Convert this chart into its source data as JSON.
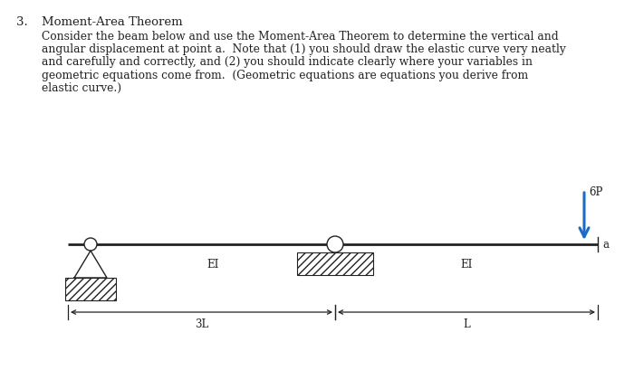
{
  "background_color": "#ffffff",
  "title_number": "3.",
  "title_text": "Moment-Area Theorem",
  "paragraph_lines": [
    "Consider the beam below and use the Moment-Area Theorem to determine the vertical and",
    "angular displacement at point a.  Note that (1) you should draw the elastic curve very neatly",
    "and carefully and correctly, and (2) you should indicate clearly where your variables in",
    "geometric equations come from.  (Geometric equations are equations you derive from",
    "elastic curve.)"
  ],
  "beam_color": "#222222",
  "beam_lw": 2.0,
  "arrow_color": "#1A6BC4",
  "force_label": "6P",
  "point_a_label": "a",
  "EI_label": "EI",
  "dim_3L_label": "3L",
  "dim_L_label": "L",
  "text_color": "#222222",
  "font_family": "serif"
}
